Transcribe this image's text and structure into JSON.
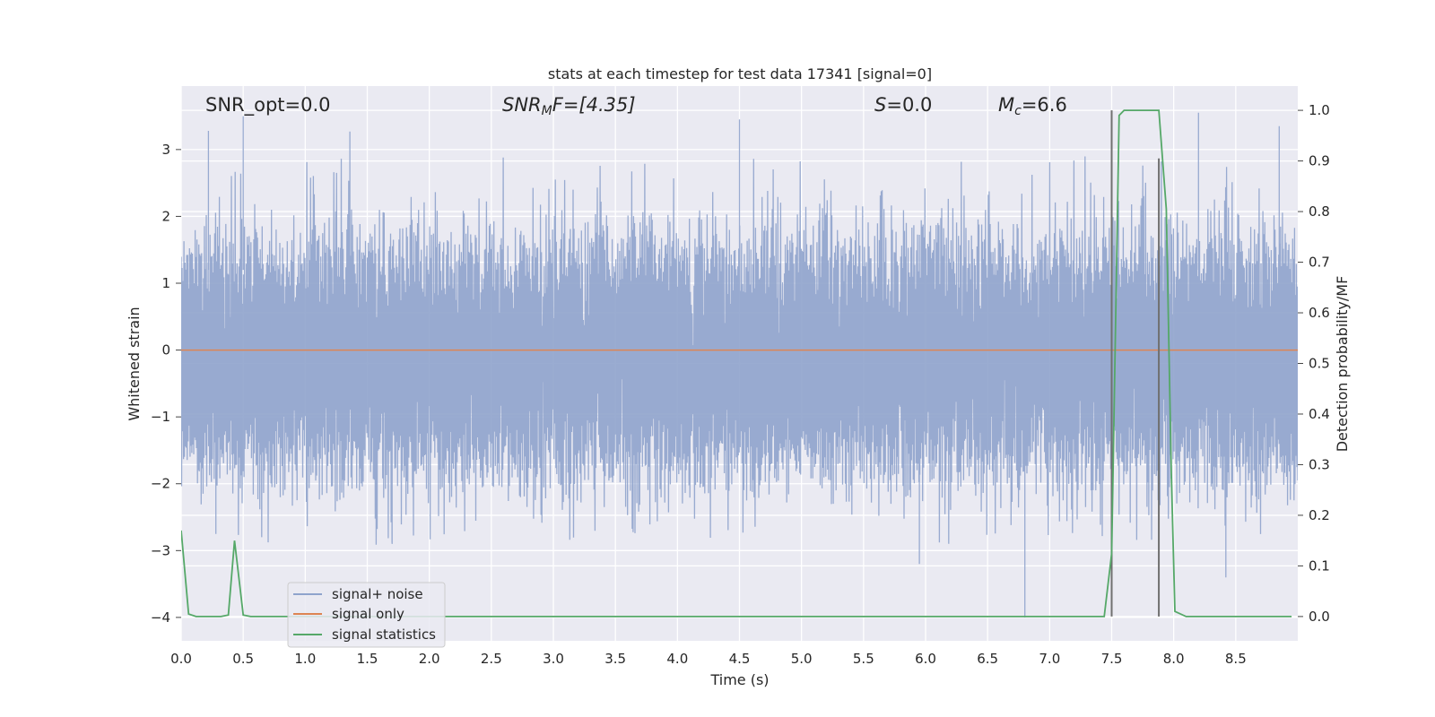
{
  "chart_data": {
    "type": "line",
    "title": "stats at each timestep for test data 17341 [signal=0]",
    "xlabel": "Time (s)",
    "ylabel": "Whitened strain",
    "y2label": "Detection probability/MF",
    "xlim": [
      0.0,
      9.0
    ],
    "ylim": [
      -4.35,
      3.95
    ],
    "y2lim": [
      -0.048,
      1.048
    ],
    "xticks": [
      "0.0",
      "0.5",
      "1.0",
      "1.5",
      "2.0",
      "2.5",
      "3.0",
      "3.5",
      "4.0",
      "4.5",
      "5.0",
      "5.5",
      "6.0",
      "6.5",
      "7.0",
      "7.5",
      "8.0",
      "8.5"
    ],
    "yticks": [
      "3",
      "2",
      "1",
      "0",
      "−1",
      "−2",
      "−3",
      "−4"
    ],
    "y2ticks": [
      "1.0",
      "0.9",
      "0.8",
      "0.7",
      "0.6",
      "0.5",
      "0.4",
      "0.3",
      "0.2",
      "0.1",
      "0.0"
    ],
    "grid": true,
    "legend_position": "lower-left",
    "annotations": {
      "snr_opt": "SNR_opt=0.0",
      "snr_mf_prefix": "SNR",
      "snr_mf_sub": "M",
      "snr_mf_suffix": "F=[4.35]",
      "s_var": "S",
      "s_value": "=0.0",
      "mc_var": "M",
      "mc_sub": "c",
      "mc_value": "=6.6"
    },
    "series": [
      {
        "name": "signal+ noise",
        "color": "#8fa3cc",
        "description": "whitened noise, approx band -1.8..1.5 with spikes to about ±3.5",
        "noise_envelope": [
          -1.8,
          1.5
        ],
        "peaks": [
          {
            "x": 0.22,
            "y": 3.28
          },
          {
            "x": 0.5,
            "y": 3.5
          },
          {
            "x": 1.36,
            "y": 3.27
          },
          {
            "x": 4.5,
            "y": 3.45
          },
          {
            "x": 8.2,
            "y": 3.55
          },
          {
            "x": 8.85,
            "y": 3.35
          },
          {
            "x": 6.8,
            "y": -4.0
          },
          {
            "x": 5.95,
            "y": -3.2
          },
          {
            "x": 8.42,
            "y": -3.4
          },
          {
            "x": 0.28,
            "y": -2.75
          },
          {
            "x": 1.7,
            "y": -2.9
          }
        ]
      },
      {
        "name": "signal only",
        "color": "#dd8452",
        "x": [
          0.0,
          9.0
        ],
        "y": [
          0.0,
          0.0
        ]
      },
      {
        "name": "signal statistics",
        "color": "#55a868",
        "axis": "right",
        "x": [
          0.0,
          0.06,
          0.12,
          0.32,
          0.38,
          0.43,
          0.5,
          0.56,
          7.44,
          7.5,
          7.56,
          7.6,
          7.88,
          7.94,
          7.98,
          8.01,
          8.1,
          8.95
        ],
        "y": [
          0.17,
          0.005,
          0.0,
          0.0,
          0.003,
          0.15,
          0.003,
          0.0,
          0.0,
          0.125,
          0.99,
          1.0,
          1.0,
          0.805,
          0.29,
          0.01,
          0.0,
          0.0
        ]
      }
    ],
    "event_markers": [
      {
        "x": 7.5,
        "y_top": 1.0,
        "color": "#707070"
      },
      {
        "x": 7.88,
        "y_top": 0.905,
        "color": "#707070"
      }
    ]
  }
}
